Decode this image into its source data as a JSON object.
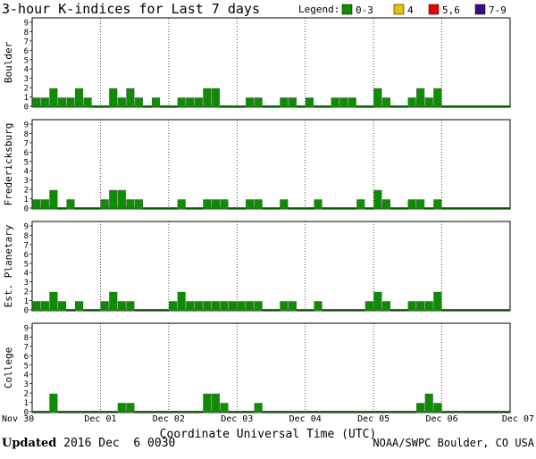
{
  "chart_data": {
    "type": "bar",
    "title": "3-hour K-indices for Last 7 days",
    "legend": {
      "label": "Legend:",
      "items": [
        {
          "label": "0-3",
          "color": "#0b8f00"
        },
        {
          "label": "4",
          "color": "#e6c000"
        },
        {
          "label": "5,6",
          "color": "#ee0000"
        },
        {
          "label": "7-9",
          "color": "#3d0a8a"
        }
      ]
    },
    "xlabel": "Coordinate Universal Time (UTC)",
    "x_ticks": [
      "Nov 30",
      "Dec 01",
      "Dec 02",
      "Dec 03",
      "Dec 04",
      "Dec 05",
      "Dec 06",
      "Dec 07"
    ],
    "y_ticks": [
      "0",
      "1",
      "2",
      "3",
      "4",
      "5",
      "6",
      "7",
      "8",
      "9"
    ],
    "ylim": [
      0,
      9
    ],
    "intervals_per_day": 8,
    "bar_color": "#0b8f00",
    "panels": [
      {
        "name": "Boulder",
        "values": [
          1,
          1,
          2,
          1,
          1,
          2,
          1,
          0,
          0,
          2,
          1,
          2,
          1,
          0,
          1,
          0,
          0,
          1,
          1,
          1,
          2,
          2,
          0,
          0,
          0,
          1,
          1,
          0,
          0,
          1,
          1,
          0,
          1,
          0,
          0,
          1,
          1,
          1,
          0,
          0,
          2,
          1,
          0,
          0,
          1,
          2,
          1,
          2
        ]
      },
      {
        "name": "Fredericksburg",
        "values": [
          1,
          1,
          2,
          0,
          1,
          0,
          0,
          0,
          1,
          2,
          2,
          1,
          1,
          0,
          0,
          0,
          0,
          1,
          0,
          0,
          1,
          1,
          1,
          0,
          0,
          1,
          1,
          0,
          0,
          1,
          0,
          0,
          0,
          1,
          0,
          0,
          0,
          0,
          1,
          0,
          2,
          1,
          0,
          0,
          1,
          1,
          0,
          1
        ]
      },
      {
        "name": "Est. Planetary",
        "values": [
          1,
          1,
          2,
          1,
          0,
          1,
          0,
          0,
          1,
          2,
          1,
          1,
          0,
          0,
          0,
          0,
          1,
          2,
          1,
          1,
          1,
          1,
          1,
          1,
          1,
          1,
          1,
          0,
          0,
          1,
          1,
          0,
          0,
          1,
          0,
          0,
          0,
          0,
          0,
          1,
          2,
          1,
          0,
          0,
          1,
          1,
          1,
          2
        ]
      },
      {
        "name": "College",
        "values": [
          0,
          0,
          2,
          0,
          0,
          0,
          0,
          0,
          0,
          0,
          1,
          1,
          0,
          0,
          0,
          0,
          0,
          0,
          0,
          0,
          2,
          2,
          1,
          0,
          0,
          0,
          1,
          0,
          0,
          0,
          0,
          0,
          0,
          0,
          0,
          0,
          0,
          0,
          0,
          0,
          0,
          0,
          0,
          0,
          0,
          1,
          2,
          1
        ]
      }
    ]
  },
  "footer": {
    "updated_label": "Updated",
    "updated_value": "2016 Dec  6 0030",
    "credit": "NOAA/SWPC Boulder, CO USA"
  }
}
